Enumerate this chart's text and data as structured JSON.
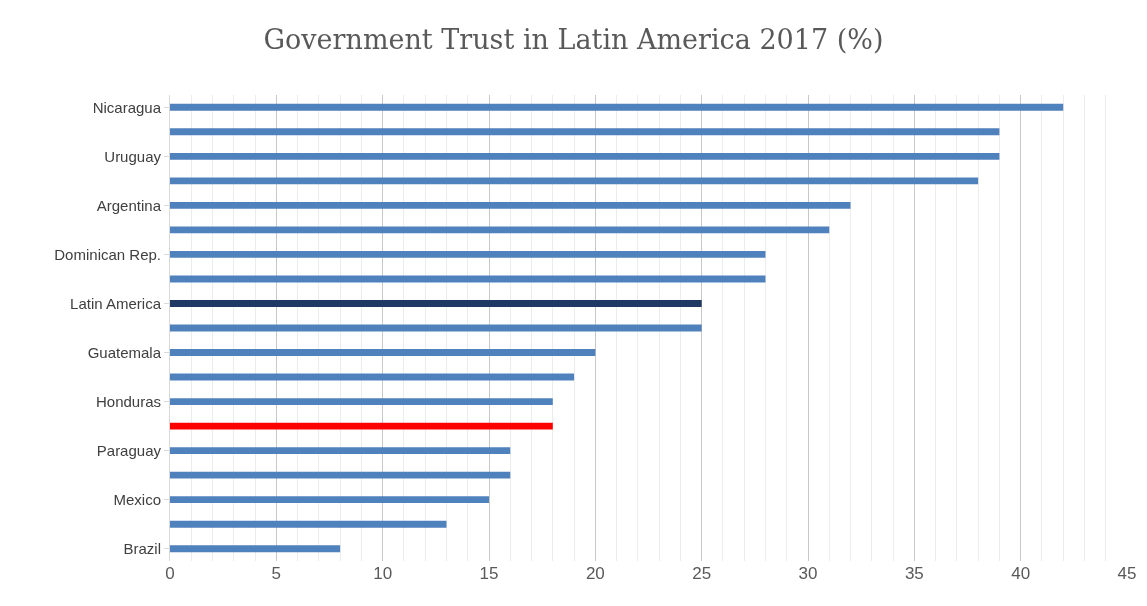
{
  "chart_data": {
    "type": "bar",
    "orientation": "horizontal",
    "title": "Government Trust in Latin America 2017 (%)",
    "categories": [
      "Nicaragua",
      null,
      "Uruguay",
      null,
      "Argentina",
      null,
      "Dominican Rep.",
      null,
      "Latin America",
      null,
      "Guatemala",
      null,
      "Honduras",
      null,
      "Paraguay",
      null,
      "Mexico",
      null,
      "Brazil"
    ],
    "values": [
      42,
      39,
      39,
      38,
      32,
      31,
      28,
      28,
      25,
      25,
      20,
      19,
      18,
      18,
      16,
      16,
      15,
      13,
      8
    ],
    "colors": [
      "#4f81bd",
      "#4f81bd",
      "#4f81bd",
      "#4f81bd",
      "#4f81bd",
      "#4f81bd",
      "#4f81bd",
      "#4f81bd",
      "#1f3864",
      "#4f81bd",
      "#4f81bd",
      "#4f81bd",
      "#4f81bd",
      "#ff0000",
      "#4f81bd",
      "#4f81bd",
      "#4f81bd",
      "#4f81bd",
      "#4f81bd"
    ],
    "xlim": [
      0,
      45
    ],
    "xticks": [
      0,
      5,
      10,
      15,
      20,
      25,
      30,
      35,
      40,
      45
    ],
    "grid": "x",
    "legend": false
  }
}
